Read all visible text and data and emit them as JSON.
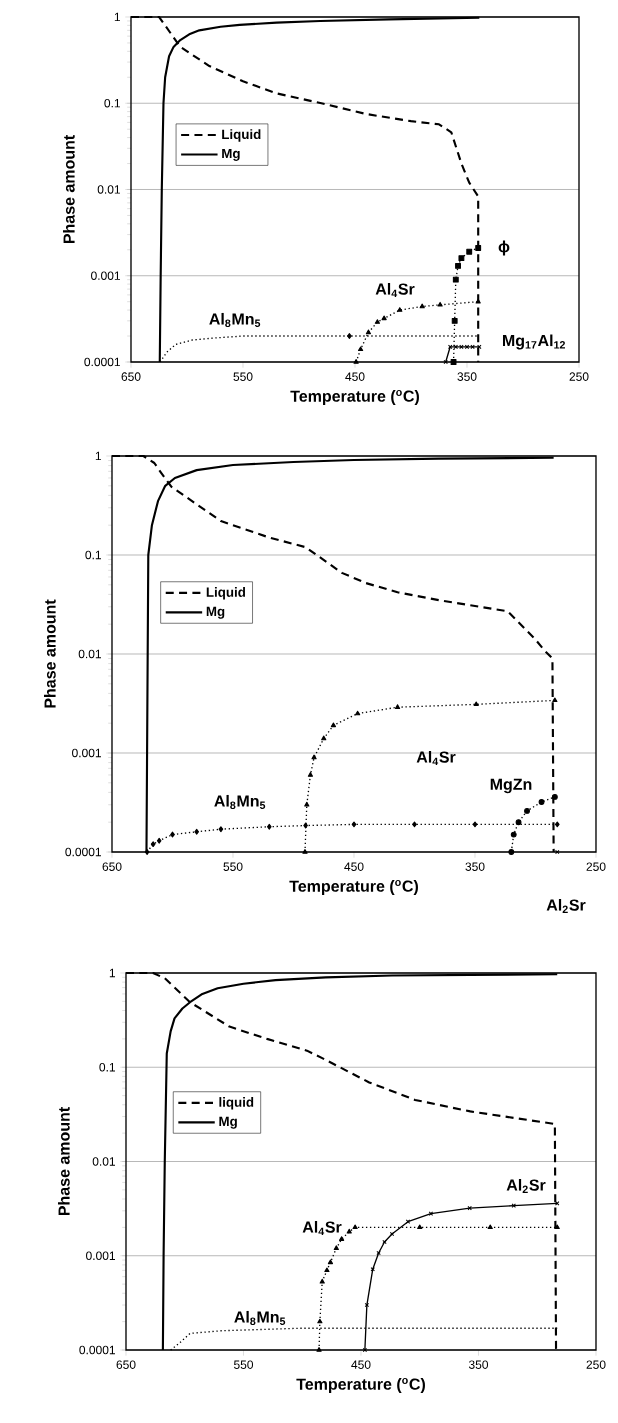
{
  "chart_data": [
    {
      "type": "line",
      "xlabel": "Temperature ($^{o}$C)",
      "ylabel": "Phase amount",
      "xlim": [
        650,
        250
      ],
      "xticks": [
        650,
        550,
        450,
        350,
        250
      ],
      "ylim": [
        0.0001,
        1
      ],
      "yticks": [
        0.0001,
        0.001,
        0.01,
        0.1,
        1
      ],
      "log": "y",
      "grid": "y",
      "legend": "left",
      "series": [
        {
          "name": "Liquid",
          "color": "#000000",
          "line_style": "dashed",
          "marker": "none",
          "x": [
            650,
            625,
            619,
            606,
            580,
            550,
            520,
            480,
            440,
            400,
            375,
            364,
            355,
            348,
            340,
            340
          ],
          "values": [
            1,
            1,
            0.78,
            0.45,
            0.27,
            0.18,
            0.13,
            0.1,
            0.075,
            0.062,
            0.057,
            0.046,
            0.02,
            0.012,
            0.0083,
            0.0001
          ]
        },
        {
          "name": "Mg",
          "color": "#000000",
          "line_style": "solid",
          "marker": "none",
          "x": [
            624.3,
            623.5,
            622.5,
            621,
            619.5,
            616,
            612,
            606,
            598,
            589,
            570,
            553,
            520,
            481,
            420,
            339
          ],
          "values": [
            0.0001,
            0.001,
            0.01,
            0.1,
            0.2,
            0.35,
            0.45,
            0.54,
            0.63,
            0.7,
            0.77,
            0.81,
            0.86,
            0.9,
            0.94,
            0.98
          ]
        },
        {
          "color": "#000000",
          "line_style": "dotted",
          "marker": "none",
          "x": [
            624,
            618,
            610,
            595,
            575,
            550,
            340
          ],
          "values": [
            0.0001,
            0.00013,
            0.00016,
            0.00018,
            0.00019,
            0.0002,
            0.0002
          ]
        },
        {
          "type": "scatter",
          "color": "#000000",
          "marker": "diamond",
          "x": [
            455
          ],
          "values": [
            0.0002
          ]
        },
        {
          "color": "#000000",
          "line_style": "dotted",
          "marker": "triangle",
          "x": [
            449,
            445,
            438,
            430,
            424,
            410,
            390,
            374,
            340
          ],
          "values": [
            0.0001,
            0.00014,
            0.00022,
            0.00029,
            0.00032,
            0.0004,
            0.00044,
            0.00046,
            0.0005
          ]
        },
        {
          "color": "#000000",
          "line_style": "dotted",
          "marker": "square",
          "x": [
            362,
            361,
            360,
            358,
            355,
            348,
            340
          ],
          "values": [
            0.0001,
            0.0003,
            0.0009,
            0.0013,
            0.0016,
            0.0019,
            0.0021
          ]
        },
        {
          "color": "#000000",
          "line_style": "solid",
          "marker": "cross",
          "x": [
            369,
            365,
            360,
            355,
            350,
            345,
            339
          ],
          "values": [
            0.0001,
            0.00015,
            0.00015,
            0.00015,
            0.00015,
            0.00015,
            0.00015
          ]
        }
      ],
      "annotations": [
        "Al$_{8}$Mn$_{5}$",
        "Al$_{4}$Sr",
        "ϕ",
        "Mg$_{17}$Al$_{12}$"
      ]
    },
    {
      "type": "line",
      "xlabel": "Temperature ($^{o}$C)",
      "ylabel": "Phase amount",
      "xlim": [
        650,
        250
      ],
      "xticks": [
        650,
        550,
        450,
        350,
        250
      ],
      "ylim": [
        0.0001,
        1
      ],
      "yticks": [
        0.0001,
        0.001,
        0.01,
        0.1,
        1
      ],
      "log": "y",
      "grid": "y",
      "legend": "left",
      "series": [
        {
          "name": "Liquid",
          "color": "#000000",
          "line_style": "dashed",
          "marker": "none",
          "x": [
            650,
            624,
            615,
            611,
            601,
            560,
            520,
            490,
            460,
            440,
            414,
            380,
            323,
            300,
            293,
            286,
            285
          ],
          "values": [
            1,
            1,
            0.85,
            0.72,
            0.49,
            0.22,
            0.15,
            0.12,
            0.066,
            0.052,
            0.042,
            0.035,
            0.027,
            0.014,
            0.011,
            0.009,
            0.0001
          ]
        },
        {
          "name": "Mg",
          "color": "#000000",
          "line_style": "solid",
          "marker": "none",
          "x": [
            621.5,
            621,
            620.5,
            620,
            617,
            612,
            606,
            598,
            580,
            550,
            500,
            450,
            380,
            285
          ],
          "values": [
            0.0001,
            0.001,
            0.01,
            0.1,
            0.2,
            0.35,
            0.5,
            0.6,
            0.72,
            0.81,
            0.87,
            0.91,
            0.94,
            0.96
          ]
        },
        {
          "color": "#000000",
          "line_style": "dotted",
          "marker": "diamond",
          "x": [
            621,
            616,
            611,
            600,
            580,
            560,
            520,
            490,
            450,
            400,
            350,
            282
          ],
          "values": [
            0.0001,
            0.00012,
            0.00013,
            0.00015,
            0.00016,
            0.00017,
            0.00018,
            0.000185,
            0.00019,
            0.00019,
            0.00019,
            0.00019
          ]
        },
        {
          "color": "#000000",
          "line_style": "dotted",
          "marker": "triangle",
          "x": [
            490.5,
            489,
            486,
            483,
            475,
            467,
            447,
            414,
            349,
            284
          ],
          "values": [
            0.0001,
            0.0003,
            0.0006,
            0.0009,
            0.0014,
            0.0019,
            0.0025,
            0.0029,
            0.0031,
            0.0034
          ]
        },
        {
          "color": "#000000",
          "line_style": "dotted",
          "marker": "circle",
          "x": [
            320,
            318,
            314,
            307,
            295,
            284
          ],
          "values": [
            0.0001,
            0.00015,
            0.0002,
            0.00026,
            0.00032,
            0.00036
          ]
        },
        {
          "type": "scatter",
          "color": "#000000",
          "marker": "cross",
          "x": [
            282
          ],
          "values": [
            0.0001
          ]
        }
      ],
      "annotations": [
        "Al$_{8}$Mn$_{5}$",
        "Al$_{4}$Sr",
        "MgZn",
        "Al$_{2}$Sr"
      ]
    },
    {
      "type": "line",
      "xlabel": "Temperature ($^{o}$C)",
      "ylabel": "Phase amount",
      "xlim": [
        650,
        250
      ],
      "xticks": [
        650,
        550,
        450,
        350,
        250
      ],
      "ylim": [
        0.0001,
        1
      ],
      "yticks": [
        0.0001,
        0.001,
        0.01,
        0.1,
        1
      ],
      "log": "y",
      "grid": "y",
      "legend": "left",
      "series": [
        {
          "name": "liquid",
          "color": "#000000",
          "line_style": "dashed",
          "marker": "none",
          "x": [
            650,
            627,
            617,
            595.5,
            562,
            530,
            496,
            483,
            443,
            404,
            357,
            285,
            284
          ],
          "values": [
            1,
            1,
            0.88,
            0.49,
            0.27,
            0.2,
            0.15,
            0.125,
            0.069,
            0.045,
            0.034,
            0.025,
            0.0001
          ]
        },
        {
          "name": "Mg",
          "color": "#000000",
          "line_style": "solid",
          "marker": "none",
          "x": [
            618.6,
            618,
            617,
            615.3,
            612,
            608.7,
            602,
            595.5,
            585,
            572,
            550,
            522.7,
            480,
            423.6,
            283
          ],
          "values": [
            0.0001,
            0.001,
            0.01,
            0.14,
            0.24,
            0.33,
            0.42,
            0.49,
            0.6,
            0.69,
            0.77,
            0.84,
            0.9,
            0.94,
            0.97
          ]
        },
        {
          "color": "#000000",
          "line_style": "dotted",
          "marker": "none",
          "x": [
            612,
            604,
            595.5,
            569,
            503,
            283
          ],
          "values": [
            0.0001,
            0.00012,
            0.00015,
            0.00016,
            0.00017,
            0.00017
          ]
        },
        {
          "color": "#000000",
          "line_style": "dotted",
          "marker": "triangle",
          "x": [
            485.7,
            485,
            483,
            479,
            476,
            471,
            466.5,
            460,
            455,
            400,
            340,
            283
          ],
          "values": [
            0.0001,
            0.0002,
            0.00053,
            0.0007,
            0.00085,
            0.0012,
            0.0015,
            0.0018,
            0.002,
            0.002,
            0.002,
            0.002
          ]
        },
        {
          "color": "#000000",
          "line_style": "solid",
          "marker": "cross",
          "x": [
            446.7,
            445,
            440,
            435,
            430,
            423.6,
            410,
            390.5,
            357.5,
            320,
            283
          ],
          "values": [
            0.0001,
            0.0003,
            0.00072,
            0.00107,
            0.0014,
            0.0017,
            0.0023,
            0.0028,
            0.0032,
            0.0034,
            0.0036
          ]
        }
      ],
      "annotations": [
        "Al$_{8}$Mn$_{5}$",
        "Al$_{4}$Sr",
        "Al$_{2}$Sr"
      ]
    }
  ]
}
